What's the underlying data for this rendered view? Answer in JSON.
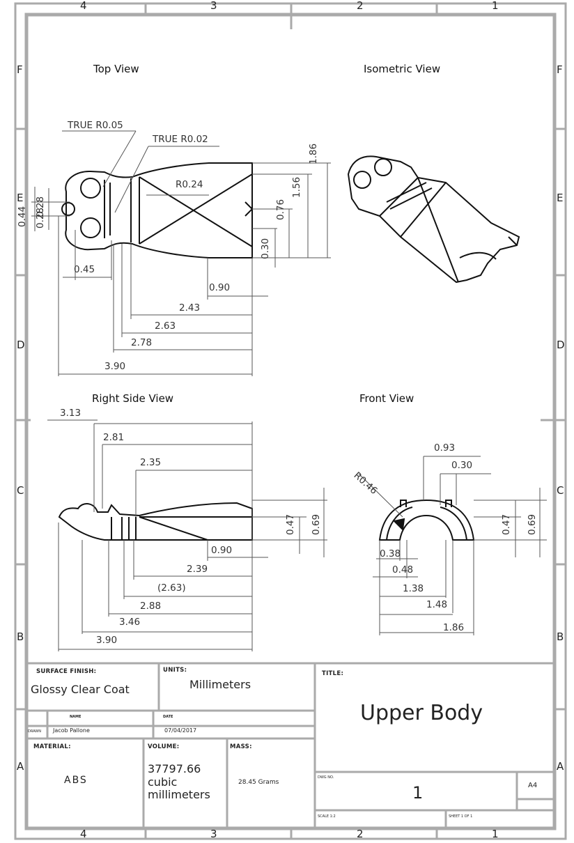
{
  "zones": {
    "columns": [
      "4",
      "3",
      "2",
      "1"
    ],
    "rows": [
      "F",
      "E",
      "D",
      "C",
      "B",
      "A"
    ]
  },
  "views": {
    "top": "Top View",
    "isometric": "Isometric View",
    "right_side": "Right Side View",
    "front": "Front View"
  },
  "dims_top": {
    "true_r005": "TRUE R0.05",
    "true_r002": "TRUE R0.02",
    "r024": "R0.24",
    "d186": "1.86",
    "d156": "1.56",
    "d076": "0.76",
    "d030": "0.30",
    "d044": "0.44",
    "d028a": "0.28",
    "d028b": "0.28",
    "d045": "0.45",
    "d090": "0.90",
    "d243": "2.43",
    "d263": "2.63",
    "d278": "2.78",
    "d390": "3.90"
  },
  "dims_side": {
    "d313": "3.13",
    "d281": "2.81",
    "d235": "2.35",
    "d090": "0.90",
    "d239": "2.39",
    "d263": "(2.63)",
    "d288": "2.88",
    "d346": "3.46",
    "d390": "3.90",
    "d047": "0.47",
    "d069": "0.69"
  },
  "dims_front": {
    "d093": "0.93",
    "d030": "0.30",
    "r046": "R0.46",
    "d047": "0.47",
    "d069": "0.69",
    "d038": "0.38",
    "d048": "0.48",
    "d138": "1.38",
    "d148": "1.48",
    "d186": "1.86"
  },
  "title_block": {
    "surface_finish_label": "SURFACE FINISH:",
    "surface_finish_value": "Glossy Clear Coat",
    "units_label": "UNITS:",
    "units_value": "Millimeters",
    "title_label": "TITLE:",
    "title_value": "Upper Body",
    "name_label": "NAME",
    "date_label": "DATE",
    "drawn_label": "DRAWN",
    "drawn_name": "Jacob Pallone",
    "drawn_date": "07/04/2017",
    "material_label": "MATERIAL:",
    "material_value": "ABS",
    "volume_label": "VOLUME:",
    "volume_value_1": "37797.66",
    "volume_value_2": "cubic",
    "volume_value_3": "millimeters",
    "mass_label": "MASS:",
    "mass_value": "28.45 Grams",
    "dwg_no_label": "DWG NO.",
    "dwg_no_value": "1",
    "size_value": "A4",
    "scale_label": "SCALE 1:2",
    "sheet_label": "SHEET 1 OF 1"
  },
  "colors": {
    "border": "#aaaaaa",
    "line": "#111111",
    "dim": "#555555"
  }
}
